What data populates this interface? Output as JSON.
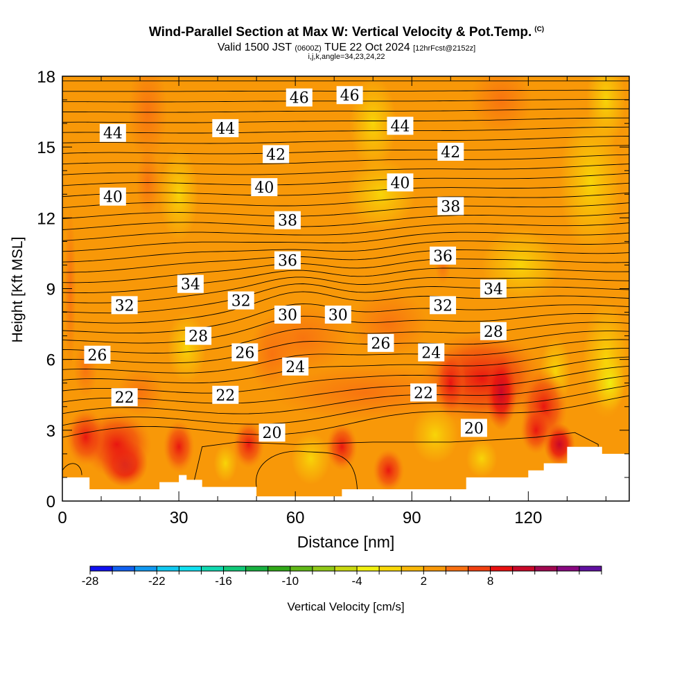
{
  "header": {
    "title": "Wind-Parallel Section at Max W: Vertical Velocity & Pot.Temp.",
    "copyright": "(C)",
    "valid_main_1": "Valid 1500 JST",
    "valid_utc": "(0600Z)",
    "valid_main_2": "TUE 22 Oct 2024",
    "forecast_tag": "[12hrFcst@2152z]",
    "indices": "i,j,k,angle=34,23,24,22"
  },
  "chart_data": {
    "type": "contour-section",
    "xlabel": "Distance [nm]",
    "ylabel": "Height [Kft MSL]",
    "xlim": [
      0,
      146
    ],
    "ylim": [
      0,
      18
    ],
    "x_ticks": [
      0,
      30,
      60,
      90,
      120
    ],
    "y_ticks": [
      0,
      3,
      6,
      9,
      12,
      15,
      18
    ],
    "fill_variable": "Vertical Velocity [cm/s]",
    "contour_variable": "Potential temperature",
    "contour_labels": [
      {
        "value": "46",
        "x": 61,
        "y": 17.1
      },
      {
        "value": "46",
        "x": 74,
        "y": 17.2
      },
      {
        "value": "44",
        "x": 13,
        "y": 15.6
      },
      {
        "value": "44",
        "x": 42,
        "y": 15.8
      },
      {
        "value": "44",
        "x": 87,
        "y": 15.9
      },
      {
        "value": "42",
        "x": 55,
        "y": 14.7
      },
      {
        "value": "42",
        "x": 100,
        "y": 14.8
      },
      {
        "value": "40",
        "x": 13,
        "y": 12.9
      },
      {
        "value": "40",
        "x": 52,
        "y": 13.3
      },
      {
        "value": "40",
        "x": 87,
        "y": 13.5
      },
      {
        "value": "38",
        "x": 58,
        "y": 11.9
      },
      {
        "value": "38",
        "x": 100,
        "y": 12.5
      },
      {
        "value": "36",
        "x": 58,
        "y": 10.2
      },
      {
        "value": "36",
        "x": 98,
        "y": 10.4
      },
      {
        "value": "34",
        "x": 33,
        "y": 9.2
      },
      {
        "value": "34",
        "x": 111,
        "y": 9.0
      },
      {
        "value": "32",
        "x": 16,
        "y": 8.3
      },
      {
        "value": "32",
        "x": 46,
        "y": 8.5
      },
      {
        "value": "32",
        "x": 98,
        "y": 8.3
      },
      {
        "value": "30",
        "x": 58,
        "y": 7.9
      },
      {
        "value": "30",
        "x": 71,
        "y": 7.9
      },
      {
        "value": "28",
        "x": 35,
        "y": 7.0
      },
      {
        "value": "28",
        "x": 111,
        "y": 7.2
      },
      {
        "value": "26",
        "x": 9,
        "y": 6.2
      },
      {
        "value": "26",
        "x": 47,
        "y": 6.3
      },
      {
        "value": "26",
        "x": 82,
        "y": 6.7
      },
      {
        "value": "24",
        "x": 60,
        "y": 5.7
      },
      {
        "value": "24",
        "x": 95,
        "y": 6.3
      },
      {
        "value": "22",
        "x": 16,
        "y": 4.4
      },
      {
        "value": "22",
        "x": 42,
        "y": 4.5
      },
      {
        "value": "22",
        "x": 93,
        "y": 4.6
      },
      {
        "value": "20",
        "x": 54,
        "y": 2.9
      },
      {
        "value": "20",
        "x": 106,
        "y": 3.1
      }
    ],
    "colorbar": {
      "label": "Vertical Velocity [cm/s]",
      "tick_labels": [
        "-28",
        "-22",
        "-16",
        "-10",
        "-4",
        "2",
        "8"
      ],
      "colors": [
        "#1010f0",
        "#1060f0",
        "#1098f0",
        "#10c8f0",
        "#10e0f0",
        "#10d8b0",
        "#10c878",
        "#18b040",
        "#30a818",
        "#60b818",
        "#90c818",
        "#c8d810",
        "#f0f010",
        "#f8d808",
        "#f8b808",
        "#f89808",
        "#f87010",
        "#f04010",
        "#e81010",
        "#c80828",
        "#a00850",
        "#880880",
        "#6010a0"
      ]
    },
    "terrain_profile_kft": [
      [
        0,
        1
      ],
      [
        7,
        1
      ],
      [
        7,
        0.5
      ],
      [
        25,
        0.5
      ],
      [
        25,
        0.8
      ],
      [
        30,
        0.8
      ],
      [
        30,
        1.1
      ],
      [
        32,
        1.1
      ],
      [
        32,
        0.9
      ],
      [
        36,
        0.9
      ],
      [
        36,
        0.6
      ],
      [
        50,
        0.6
      ],
      [
        50,
        0.2
      ],
      [
        72,
        0.2
      ],
      [
        72,
        0.5
      ],
      [
        104,
        0.5
      ],
      [
        104,
        1.0
      ],
      [
        120,
        1.0
      ],
      [
        120,
        1.3
      ],
      [
        124,
        1.3
      ],
      [
        124,
        1.6
      ],
      [
        130,
        1.6
      ],
      [
        130,
        2.3
      ],
      [
        139,
        2.3
      ],
      [
        139,
        2.0
      ],
      [
        146,
        2.0
      ]
    ]
  }
}
